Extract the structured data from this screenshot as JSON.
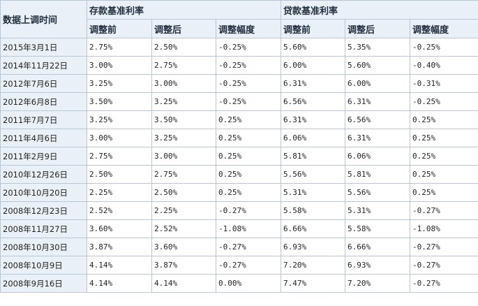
{
  "table": {
    "date_header": "数据上调时间",
    "deposit_header": "存款基准利率",
    "loan_header": "贷款基准利率",
    "sub_headers": [
      "调整前",
      "调整后",
      "调整幅度",
      "调整前",
      "调整后",
      "调整幅度"
    ],
    "rows": [
      {
        "date": "2015年3月1日",
        "dep_before": "2.75%",
        "dep_after": "2.50%",
        "dep_change": "-0.25%",
        "loan_before": "5.60%",
        "loan_after": "5.35%",
        "loan_change": "-0.25%"
      },
      {
        "date": "2014年11月22日",
        "dep_before": "3.00%",
        "dep_after": "2.75%",
        "dep_change": "-0.25%",
        "loan_before": "6.00%",
        "loan_after": "5.60%",
        "loan_change": "-0.40%"
      },
      {
        "date": "2012年7月6日",
        "dep_before": "3.25%",
        "dep_after": "3.00%",
        "dep_change": "-0.25%",
        "loan_before": "6.31%",
        "loan_after": "6.00%",
        "loan_change": "-0.31%"
      },
      {
        "date": "2012年6月8日",
        "dep_before": "3.50%",
        "dep_after": "3.25%",
        "dep_change": "-0.25%",
        "loan_before": "6.56%",
        "loan_after": "6.31%",
        "loan_change": "-0.25%"
      },
      {
        "date": "2011年7月7日",
        "dep_before": "3.25%",
        "dep_after": "3.50%",
        "dep_change": "0.25%",
        "loan_before": "6.31%",
        "loan_after": "6.56%",
        "loan_change": "0.25%"
      },
      {
        "date": "2011年4月6日",
        "dep_before": "3.00%",
        "dep_after": "3.25%",
        "dep_change": "0.25%",
        "loan_before": "6.06%",
        "loan_after": "6.31%",
        "loan_change": "0.25%"
      },
      {
        "date": "2011年2月9日",
        "dep_before": "2.75%",
        "dep_after": "3.00%",
        "dep_change": "0.25%",
        "loan_before": "5.81%",
        "loan_after": "6.06%",
        "loan_change": "0.25%"
      },
      {
        "date": "2010年12月26日",
        "dep_before": "2.50%",
        "dep_after": "2.75%",
        "dep_change": "0.25%",
        "loan_before": "5.56%",
        "loan_after": "5.81%",
        "loan_change": "0.25%"
      },
      {
        "date": "2010年10月20日",
        "dep_before": "2.25%",
        "dep_after": "2.50%",
        "dep_change": "0.25%",
        "loan_before": "5.31%",
        "loan_after": "5.56%",
        "loan_change": "0.25%"
      },
      {
        "date": "2008年12月23日",
        "dep_before": "2.52%",
        "dep_after": "2.25%",
        "dep_change": "-0.27%",
        "loan_before": "5.58%",
        "loan_after": "5.31%",
        "loan_change": "-0.27%"
      },
      {
        "date": "2008年11月27日",
        "dep_before": "3.60%",
        "dep_after": "2.52%",
        "dep_change": "-1.08%",
        "loan_before": "6.66%",
        "loan_after": "5.58%",
        "loan_change": "-1.08%"
      },
      {
        "date": "2008年10月30日",
        "dep_before": "3.87%",
        "dep_after": "3.60%",
        "dep_change": "-0.27%",
        "loan_before": "6.93%",
        "loan_after": "6.66%",
        "loan_change": "-0.27%"
      },
      {
        "date": "2008年10月9日",
        "dep_before": "4.14%",
        "dep_after": "3.87%",
        "dep_change": "-0.27%",
        "loan_before": "7.20%",
        "loan_after": "6.93%",
        "loan_change": "-0.27%"
      },
      {
        "date": "2008年9月16日",
        "dep_before": "4.14%",
        "dep_after": "4.14%",
        "dep_change": "0.00%",
        "loan_before": "7.47%",
        "loan_after": "7.20%",
        "loan_change": "-0.27%"
      }
    ]
  },
  "colors": {
    "header_bg": "#eaf0f7",
    "border": "#b9c6d6",
    "text": "#222222"
  }
}
